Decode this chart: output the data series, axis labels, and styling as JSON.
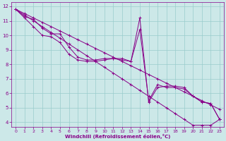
{
  "xlabel": "Windchill (Refroidissement éolien,°C)",
  "xlim": [
    -0.5,
    23.5
  ],
  "ylim": [
    3.7,
    12.3
  ],
  "xticks": [
    0,
    1,
    2,
    3,
    4,
    5,
    6,
    7,
    8,
    9,
    10,
    11,
    12,
    13,
    14,
    15,
    16,
    17,
    18,
    19,
    20,
    21,
    22,
    23
  ],
  "yticks": [
    4,
    5,
    6,
    7,
    8,
    9,
    10,
    11,
    12
  ],
  "bg_color": "#cce8e8",
  "line_color": "#880088",
  "grid_color": "#99cccc",
  "lines": [
    {
      "x": [
        0,
        1,
        2,
        3,
        4,
        5,
        6,
        7,
        8,
        9,
        10,
        11,
        12,
        13,
        14,
        15,
        16,
        17,
        18,
        19,
        20,
        21,
        22,
        23
      ],
      "y": [
        11.8,
        11.3,
        11.1,
        10.5,
        10.1,
        10.1,
        9.2,
        8.5,
        8.3,
        8.3,
        8.4,
        8.4,
        8.4,
        8.2,
        11.2,
        5.4,
        6.4,
        6.5,
        6.5,
        6.4,
        5.8,
        5.4,
        5.3,
        4.2
      ]
    },
    {
      "x": [
        0,
        1,
        2,
        3,
        4,
        5,
        6,
        7,
        8,
        9,
        10,
        11,
        12,
        13,
        14,
        15,
        16,
        17,
        18,
        19,
        20,
        21,
        22,
        23
      ],
      "y": [
        11.8,
        11.2,
        10.6,
        10.0,
        9.9,
        9.5,
        8.7,
        8.3,
        8.2,
        8.2,
        8.3,
        8.4,
        8.3,
        8.2,
        10.4,
        5.5,
        6.6,
        6.4,
        6.4,
        6.3,
        5.8,
        5.4,
        5.3,
        4.2
      ]
    },
    {
      "x": [
        0,
        1,
        2,
        3,
        4,
        5,
        6,
        7,
        8,
        9,
        10,
        11,
        12,
        13,
        14,
        15,
        16,
        17,
        18,
        19,
        20,
        21,
        22,
        23
      ],
      "y": [
        11.8,
        11.5,
        11.2,
        10.9,
        10.6,
        10.3,
        10.0,
        9.7,
        9.4,
        9.1,
        8.8,
        8.5,
        8.2,
        7.9,
        7.6,
        7.3,
        7.0,
        6.7,
        6.4,
        6.1,
        5.8,
        5.5,
        5.2,
        4.9
      ]
    },
    {
      "x": [
        0,
        1,
        2,
        3,
        4,
        5,
        6,
        7,
        8,
        9,
        10,
        11,
        12,
        13,
        14,
        15,
        16,
        17,
        18,
        19,
        20,
        21,
        22,
        23
      ],
      "y": [
        11.8,
        11.4,
        11.0,
        10.6,
        10.2,
        9.8,
        9.4,
        9.0,
        8.6,
        8.2,
        7.8,
        7.4,
        7.0,
        6.6,
        6.2,
        5.8,
        5.4,
        5.0,
        4.6,
        4.2,
        3.8,
        3.8,
        3.8,
        4.2
      ]
    }
  ]
}
